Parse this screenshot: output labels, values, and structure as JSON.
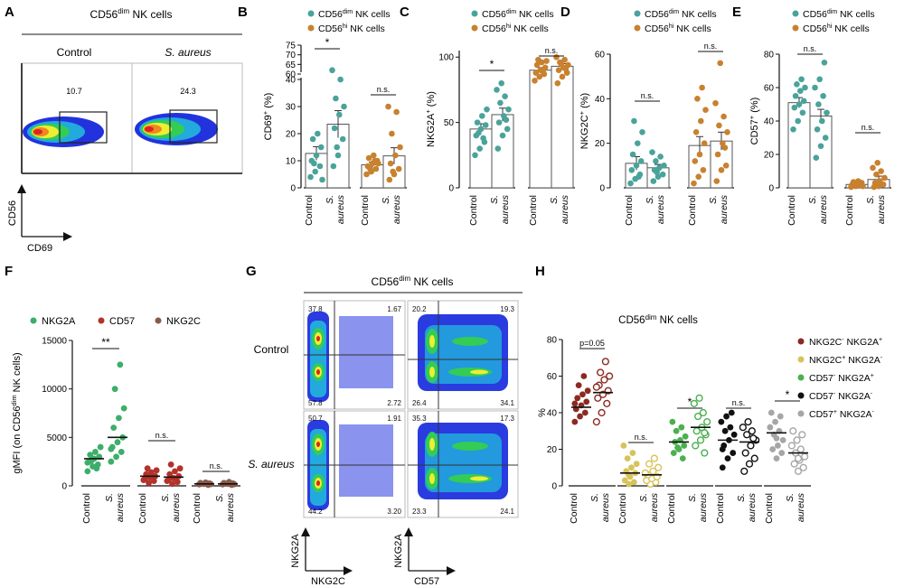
{
  "colors": {
    "teal": "#4aa39a",
    "orange": "#c8812f",
    "nkg2a": "#3dae6a",
    "cd57": "#b3322a",
    "nkg2c": "#8a5a48",
    "h_s1": "#8b2a22",
    "h_s2": "#d7c35a",
    "h_s3": "#4bb04f",
    "h_s4": "#111111",
    "h_s5": "#a6a6a6"
  },
  "panel_letters": {
    "A": "A",
    "B": "B",
    "C": "C",
    "D": "D",
    "E": "E",
    "F": "F",
    "G": "G",
    "H": "H"
  },
  "common": {
    "control": "Control",
    "s_aureus_s": "S.",
    "s_aureus_a": "aureus",
    "ns": "n.s.",
    "star": "*",
    "dstar": "**",
    "p005": "p=0.05"
  },
  "legend_small": {
    "dim_pre": "CD56",
    "dim_sup": "dim",
    "hi_pre": "CD56",
    "hi_sup": "hi",
    "suffix": " NK cells"
  },
  "panelA": {
    "title_pre": "CD56",
    "title_sup": "dim",
    "title_post": " NK cells",
    "col1": "Control",
    "col2": "S. aureus",
    "gate1": "10.7",
    "gate2": "24.3",
    "ylabel": "CD56",
    "xlabel": "CD69"
  },
  "panelG": {
    "title_pre": "CD56",
    "title_sup": "dim",
    "title_post": " NK cells",
    "row1": "Control",
    "row2": "S. aureus",
    "q": {
      "c_left": [
        "37.8",
        "1.67",
        "57.8",
        "2.72"
      ],
      "c_right": [
        "20.2",
        "19.3",
        "26.4",
        "34.1"
      ],
      "s_left": [
        "50.7",
        "1.91",
        "44.2",
        "3.20"
      ],
      "s_right": [
        "35.3",
        "17.3",
        "23.3",
        "24.1"
      ]
    },
    "y1": "NKG2A",
    "x1": "NKG2C",
    "y2": "NKG2A",
    "x2": "CD57"
  },
  "chart_data": [
    {
      "panel": "B",
      "type": "bar",
      "ylabel_pre": "CD69",
      "ylabel_sup": "+",
      "ylabel_post": " (%)",
      "ylim_lower": [
        0,
        40
      ],
      "ylim_upper": [
        60,
        75
      ],
      "yticks": [
        0,
        10,
        20,
        30,
        40,
        60,
        65,
        70,
        75
      ],
      "series": [
        {
          "name": "CD56dim NK cells",
          "groups": [
            {
              "label": "Control",
              "mean": 12.7,
              "sem": 2.5,
              "points": [
                4,
                6,
                8,
                10,
                12,
                15,
                18,
                20,
                3,
                9
              ]
            },
            {
              "label": "S. aureus",
              "mean": 23.5,
              "sem": 5,
              "points": [
                8,
                12,
                18,
                22,
                27,
                30,
                33,
                40,
                62,
                15
              ]
            }
          ]
        },
        {
          "name": "CD56hi NK cells",
          "groups": [
            {
              "label": "Control",
              "mean": 8.5,
              "sem": 1,
              "points": [
                5,
                6,
                7,
                8,
                9,
                10,
                11,
                12,
                9,
                7,
                10
              ]
            },
            {
              "label": "S. aureus",
              "mean": 11.8,
              "sem": 3,
              "points": [
                3,
                5,
                7,
                9,
                12,
                15,
                20,
                28,
                30,
                6
              ]
            }
          ]
        }
      ],
      "significance": [
        "*",
        "n.s."
      ]
    },
    {
      "panel": "C",
      "type": "bar",
      "ylabel_pre": "NKG2A",
      "ylabel_sup": "+",
      "ylabel_post": " (%)",
      "ylim": [
        0,
        105
      ],
      "yticks": [
        0,
        50,
        100
      ],
      "series": [
        {
          "name": "CD56dim NK cells",
          "groups": [
            {
              "label": "Control",
              "mean": 45,
              "sem": 4,
              "points": [
                25,
                30,
                35,
                40,
                45,
                48,
                50,
                55,
                60,
                42,
                38
              ]
            },
            {
              "label": "S. aureus",
              "mean": 56,
              "sem": 5,
              "points": [
                30,
                40,
                45,
                50,
                55,
                60,
                65,
                70,
                75,
                80,
                52
              ]
            }
          ]
        },
        {
          "name": "CD56hi NK cells",
          "groups": [
            {
              "label": "Control",
              "mean": 90,
              "sem": 2,
              "points": [
                82,
                85,
                87,
                88,
                90,
                92,
                94,
                96,
                97,
                98,
                89
              ]
            },
            {
              "label": "S. aureus",
              "mean": 93,
              "sem": 2,
              "points": [
                80,
                85,
                88,
                90,
                92,
                94,
                96,
                98,
                100,
                95,
                91
              ]
            }
          ]
        }
      ],
      "significance": [
        "*",
        "n.s."
      ]
    },
    {
      "panel": "D",
      "type": "bar",
      "ylabel_pre": "NKG2C",
      "ylabel_sup": "+",
      "ylabel_post": " (%)",
      "ylim": [
        0,
        60
      ],
      "yticks": [
        0,
        20,
        40,
        60
      ],
      "series": [
        {
          "name": "CD56dim NK cells",
          "groups": [
            {
              "label": "Control",
              "mean": 11,
              "sem": 3,
              "points": [
                2,
                4,
                6,
                8,
                10,
                12,
                15,
                20,
                25,
                30,
                5
              ]
            },
            {
              "label": "S. aureus",
              "mean": 9,
              "sem": 1.5,
              "points": [
                3,
                5,
                6,
                8,
                9,
                10,
                12,
                14,
                16,
                7
              ]
            }
          ]
        },
        {
          "name": "CD56hi NK cells",
          "groups": [
            {
              "label": "Control",
              "mean": 19,
              "sem": 4,
              "points": [
                2,
                5,
                8,
                12,
                15,
                20,
                25,
                30,
                35,
                40,
                45
              ]
            },
            {
              "label": "S. aureus",
              "mean": 21,
              "sem": 4,
              "points": [
                3,
                8,
                10,
                15,
                20,
                25,
                28,
                32,
                38,
                56,
                18
              ]
            }
          ]
        }
      ],
      "significance": [
        "n.s.",
        "n.s."
      ]
    },
    {
      "panel": "E",
      "type": "bar",
      "ylabel_pre": "CD57",
      "ylabel_sup": "+",
      "ylabel_post": " (%)",
      "ylim": [
        0,
        80
      ],
      "yticks": [
        0,
        20,
        40,
        60,
        80
      ],
      "series": [
        {
          "name": "CD56dim NK cells",
          "groups": [
            {
              "label": "Control",
              "mean": 51,
              "sem": 3,
              "points": [
                35,
                40,
                45,
                48,
                50,
                52,
                55,
                58,
                60,
                62,
                65
              ]
            },
            {
              "label": "S. aureus",
              "mean": 43,
              "sem": 4,
              "points": [
                18,
                25,
                30,
                35,
                40,
                45,
                50,
                55,
                60,
                65,
                75
              ]
            }
          ]
        },
        {
          "name": "CD56hi NK cells",
          "groups": [
            {
              "label": "Control",
              "mean": 2,
              "sem": 0.5,
              "points": [
                0.5,
                1,
                1.5,
                2,
                2.5,
                3,
                3.5,
                4,
                1,
                2
              ]
            },
            {
              "label": "S. aureus",
              "mean": 5,
              "sem": 2,
              "points": [
                0.5,
                1,
                2,
                3,
                4,
                6,
                8,
                10,
                12,
                15,
                2
              ]
            }
          ]
        }
      ],
      "significance": [
        "n.s.",
        "n.s."
      ]
    },
    {
      "panel": "F",
      "type": "scatter",
      "legend": [
        "NKG2A",
        "CD57",
        "NKG2C"
      ],
      "ylabel_pre": "gMFI (on CD56",
      "ylabel_sup": "dim",
      "ylabel_post": " NK cells)",
      "ylim": [
        0,
        15000
      ],
      "yticks": [
        0,
        5000,
        10000,
        15000
      ],
      "series": [
        {
          "name": "NKG2A",
          "groups": [
            {
              "label": "Control",
              "median": 2800,
              "points": [
                1500,
                2000,
                2200,
                2500,
                2800,
                3000,
                3200,
                3500,
                4000,
                2600,
                1800,
                2400
              ]
            },
            {
              "label": "S. aureus",
              "median": 5000,
              "points": [
                2500,
                3000,
                3500,
                4000,
                4500,
                5000,
                6000,
                7000,
                8000,
                10000,
                12500,
                3800
              ]
            }
          ]
        },
        {
          "name": "CD57",
          "groups": [
            {
              "label": "Control",
              "median": 1000,
              "points": [
                300,
                500,
                700,
                900,
                1000,
                1200,
                1400,
                1600,
                1800,
                800,
                600
              ]
            },
            {
              "label": "S. aureus",
              "median": 900,
              "points": [
                200,
                400,
                600,
                800,
                1000,
                1200,
                1500,
                1800,
                2200,
                700,
                500
              ]
            }
          ]
        },
        {
          "name": "NKG2C",
          "groups": [
            {
              "label": "Control",
              "median": 200,
              "points": [
                100,
                150,
                200,
                250,
                300,
                350,
                180,
                220,
                260
              ]
            },
            {
              "label": "S. aureus",
              "median": 200,
              "points": [
                100,
                150,
                200,
                250,
                300,
                400,
                170,
                230,
                280
              ]
            }
          ]
        }
      ],
      "significance": [
        "**",
        "n.s.",
        "n.s."
      ]
    },
    {
      "panel": "H",
      "type": "scatter",
      "title_pre": "CD56",
      "title_sup": "dim",
      "title_post": " NK cells",
      "ylabel": "%",
      "ylim": [
        0,
        80
      ],
      "yticks": [
        0,
        20,
        40,
        60,
        80
      ],
      "legend": [
        "NKG2C- NKG2A+",
        "NKG2C+ NKG2A-",
        "CD57- NKG2A+",
        "CD57- NKG2A-",
        "CD57+ NKG2A-"
      ],
      "legend_items": [
        {
          "a": "NKG2C",
          "as": "-",
          "b": " NKG2A",
          "bs": "+"
        },
        {
          "a": "NKG2C",
          "as": "+",
          "b": " NKG2A",
          "bs": "-"
        },
        {
          "a": "CD57",
          "as": "-",
          "b": " NKG2A",
          "bs": "+"
        },
        {
          "a": "CD57",
          "as": "-",
          "b": " NKG2A",
          "bs": "-"
        },
        {
          "a": "CD57",
          "as": "+",
          "b": " NKG2A",
          "bs": "-"
        }
      ],
      "series": [
        {
          "name": "NKG2C- NKG2A+",
          "groups": [
            {
              "label": "Control",
              "median": 43,
              "points": [
                35,
                38,
                40,
                42,
                44,
                46,
                48,
                50,
                52,
                55,
                60,
                45
              ]
            },
            {
              "label": "S. aureus",
              "median": 51,
              "points": [
                35,
                40,
                45,
                48,
                50,
                52,
                55,
                58,
                60,
                62,
                68,
                54
              ]
            }
          ]
        },
        {
          "name": "NKG2C+ NKG2A-",
          "groups": [
            {
              "label": "Control",
              "median": 7,
              "points": [
                1,
                2,
                3,
                5,
                7,
                8,
                10,
                12,
                15,
                18,
                22,
                6
              ]
            },
            {
              "label": "S. aureus",
              "median": 6,
              "points": [
                1,
                2,
                3,
                4,
                5,
                6,
                8,
                10,
                12,
                15,
                7
              ]
            }
          ]
        },
        {
          "name": "CD57- NKG2A+",
          "groups": [
            {
              "label": "Control",
              "median": 24,
              "points": [
                15,
                18,
                20,
                22,
                24,
                25,
                27,
                30,
                32,
                35,
                21
              ]
            },
            {
              "label": "S. aureus",
              "median": 32,
              "points": [
                18,
                22,
                25,
                28,
                30,
                32,
                35,
                38,
                40,
                45,
                48,
                29
              ]
            }
          ]
        },
        {
          "name": "CD57- NKG2A-",
          "groups": [
            {
              "label": "Control",
              "median": 25,
              "points": [
                10,
                15,
                18,
                22,
                25,
                28,
                30,
                32,
                35,
                38,
                40,
                20
              ]
            },
            {
              "label": "S. aureus",
              "median": 24,
              "points": [
                8,
                12,
                15,
                18,
                22,
                25,
                28,
                30,
                32,
                35,
                26
              ]
            }
          ]
        },
        {
          "name": "CD57+ NKG2A-",
          "groups": [
            {
              "label": "Control",
              "median": 29,
              "points": [
                15,
                18,
                20,
                22,
                25,
                28,
                30,
                32,
                35,
                38,
                40,
                26
              ]
            },
            {
              "label": "S. aureus",
              "median": 18,
              "points": [
                8,
                10,
                12,
                14,
                16,
                18,
                20,
                22,
                25,
                28,
                30,
                15
              ]
            }
          ]
        }
      ],
      "significance": [
        "p=0.05",
        "n.s.",
        "*",
        "n.s.",
        "*"
      ]
    }
  ]
}
